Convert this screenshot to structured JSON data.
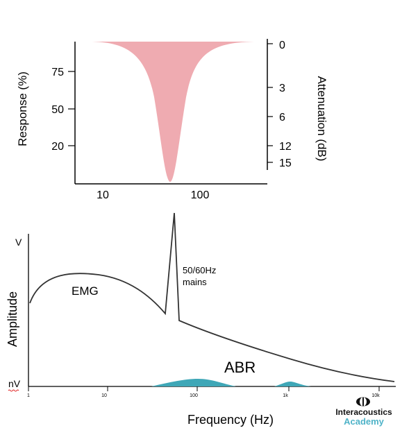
{
  "top_chart": {
    "ylabel_left": "Response (%)",
    "ylabel_right": "Attenuation (dB)",
    "left_ticks": [
      "75",
      "50",
      "20"
    ],
    "right_ticks": [
      "0",
      "3",
      "6",
      "12",
      "15"
    ],
    "x_ticks": [
      "10",
      "100"
    ],
    "fill_color": "#efabb1"
  },
  "bottom_chart": {
    "y_top": "V",
    "y_bottom": "nV",
    "ylabel": "Amplitude",
    "xlabel": "Frequency (Hz)",
    "x_ticks": [
      "1",
      "10",
      "100",
      "1k",
      "10k"
    ],
    "emg_label": "EMG",
    "mains_label_1": "50/60Hz",
    "mains_label_2": "mains",
    "abr_label": "ABR",
    "abr_color": "#3fa7b7"
  },
  "logo": {
    "name": "Interacoustics",
    "sub": "Academy",
    "sub_color": "#4fb3c8"
  }
}
